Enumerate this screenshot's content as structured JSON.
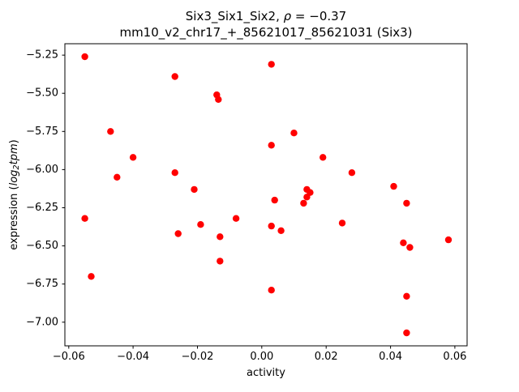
{
  "figure": {
    "background": "#ffffff"
  },
  "chart_data": {
    "type": "scatter",
    "title": {
      "line1_parts": [
        {
          "text": "Six3_Six1_Six2, "
        },
        {
          "text": "ρ",
          "italic": true
        },
        {
          "text": " = −0.37"
        }
      ],
      "line2": "mm10_v2_chr17_+_85621017_85621031 (Six3)"
    },
    "xlabel": "activity",
    "ylabel_parts": [
      {
        "text": "expression ("
      },
      {
        "text": "log",
        "italic": true
      },
      {
        "text": "2",
        "italic": true,
        "sub": true
      },
      {
        "text": "tpm",
        "italic": true
      },
      {
        "text": ")"
      }
    ],
    "marker_color": "#ff0000",
    "axis_color": "#000000",
    "xlim": [
      -0.0612,
      0.0638
    ],
    "ylim": [
      -7.155,
      -5.175
    ],
    "xticks": [
      -0.06,
      -0.04,
      -0.02,
      0.0,
      0.02,
      0.04,
      0.06
    ],
    "yticks": [
      -7.0,
      -6.75,
      -6.5,
      -6.25,
      -6.0,
      -5.75,
      -5.5,
      -5.25
    ],
    "points": [
      [
        -0.055,
        -5.26
      ],
      [
        -0.055,
        -6.32
      ],
      [
        -0.053,
        -6.7
      ],
      [
        -0.047,
        -5.75
      ],
      [
        -0.045,
        -6.05
      ],
      [
        -0.04,
        -5.92
      ],
      [
        -0.027,
        -5.39
      ],
      [
        -0.027,
        -6.02
      ],
      [
        -0.026,
        -6.42
      ],
      [
        -0.021,
        -6.13
      ],
      [
        -0.019,
        -6.36
      ],
      [
        -0.014,
        -5.51
      ],
      [
        -0.0135,
        -5.54
      ],
      [
        -0.013,
        -6.44
      ],
      [
        -0.013,
        -6.6
      ],
      [
        -0.008,
        -6.32
      ],
      [
        0.003,
        -5.31
      ],
      [
        0.003,
        -5.84
      ],
      [
        0.004,
        -6.2
      ],
      [
        0.003,
        -6.37
      ],
      [
        0.003,
        -6.79
      ],
      [
        0.006,
        -6.4
      ],
      [
        0.01,
        -5.76
      ],
      [
        0.013,
        -6.22
      ],
      [
        0.014,
        -6.13
      ],
      [
        0.015,
        -6.15
      ],
      [
        0.014,
        -6.18
      ],
      [
        0.019,
        -5.92
      ],
      [
        0.025,
        -6.35
      ],
      [
        0.028,
        -6.02
      ],
      [
        0.041,
        -6.11
      ],
      [
        0.044,
        -6.48
      ],
      [
        0.046,
        -6.51
      ],
      [
        0.045,
        -6.22
      ],
      [
        0.045,
        -6.83
      ],
      [
        0.045,
        -7.07
      ],
      [
        0.058,
        -6.46
      ]
    ]
  }
}
